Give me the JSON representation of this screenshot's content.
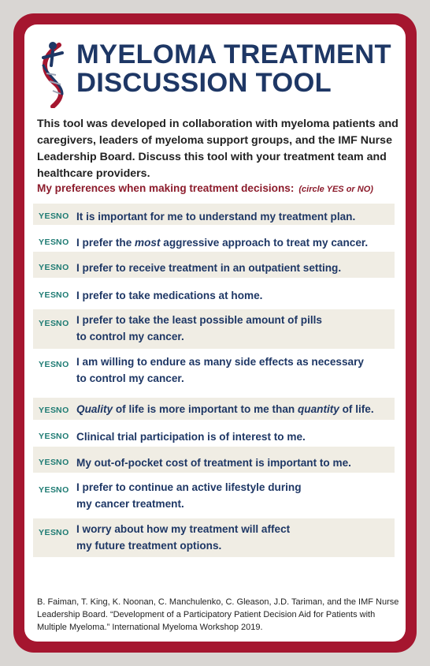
{
  "card": {
    "title_line1": "MYELOMA TREATMENT",
    "title_line2": "DISCUSSION TOOL",
    "intro": "This tool was developed in collaboration with myeloma patients and caregivers, leaders of myeloma support groups, and the IMF Nurse Leadership Board. Discuss this tool with your treatment team and healthcare providers.",
    "preferences_heading": "My preferences when making treatment decisions:",
    "preferences_note": "(circle YES or NO)",
    "yes_label": "YES",
    "no_label": "NO",
    "statements": [
      {
        "line1": "It is important for me to understand my treatment plan.",
        "line2": ""
      },
      {
        "before": "I prefer the ",
        "emph": "most",
        "after": " aggressive approach to treat my cancer."
      },
      {
        "line1": "I prefer to receive treatment in an outpatient setting.",
        "line2": ""
      },
      {
        "line1": "I prefer to take medications at home.",
        "line2": ""
      },
      {
        "line1": "I prefer to take the least possible amount of pills",
        "line2": "to control my cancer."
      },
      {
        "line1": "I am willing to endure as many side effects as necessary",
        "line2": "to control my cancer."
      },
      {
        "emph1": "Quality",
        "mid": " of life is more important to me than ",
        "emph2": "quantity",
        "after": " of life."
      },
      {
        "line1": "Clinical trial participation is of interest to me.",
        "line2": ""
      },
      {
        "line1": "My out-of-pocket cost of treatment is important to me.",
        "line2": ""
      },
      {
        "line1": "I prefer to continue an active lifestyle during",
        "line2": "my cancer treatment."
      },
      {
        "line1": "I worry about how my treatment will affect",
        "line2": "my future treatment options."
      }
    ],
    "references": "B. Faiman, T. King, K. Noonan, C. Manchulenko, C. Gleason, J.D. Tariman, and the IMF Nurse Leadership Board. “Development of a Participatory Patient Decision Aid for Patients with Multiple Myeloma.” International Myeloma Workshop 2019.",
    "colors": {
      "border": "#a5162f",
      "title": "#1e3765",
      "heading": "#8c1c2c",
      "yes_no": "#1e7b73",
      "row_shade": "#f0ede4"
    },
    "logo_icon": "dna-figure-icon"
  }
}
